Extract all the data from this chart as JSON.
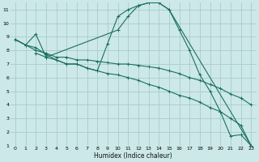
{
  "background_color": "#cce8e8",
  "grid_color": "#aacccc",
  "line_color": "#1a7060",
  "xlabel": "Humidex (Indice chaleur)",
  "xlim": [
    -0.5,
    23.5
  ],
  "ylim": [
    1,
    11.5
  ],
  "xticks": [
    0,
    1,
    2,
    3,
    4,
    5,
    6,
    7,
    8,
    9,
    10,
    11,
    12,
    13,
    14,
    15,
    16,
    17,
    18,
    19,
    20,
    21,
    22,
    23
  ],
  "yticks": [
    1,
    2,
    3,
    4,
    5,
    6,
    7,
    8,
    9,
    10,
    11
  ],
  "curve_main_x": [
    0,
    1,
    2,
    3,
    4,
    5,
    6,
    7,
    8,
    9,
    10,
    11,
    12,
    13,
    14,
    15,
    16,
    17,
    18,
    19,
    20,
    21,
    22,
    23
  ],
  "curve_main_y": [
    8.8,
    8.4,
    8.2,
    7.7,
    7.3,
    7.0,
    7.0,
    6.7,
    6.5,
    8.5,
    10.5,
    11.0,
    11.3,
    11.5,
    11.5,
    11.0,
    9.5,
    8.0,
    6.2,
    5.0,
    3.5,
    1.7,
    1.8,
    1.0
  ],
  "curve_upper_x": [
    0,
    1,
    2,
    3,
    10,
    11,
    12,
    13,
    14,
    15,
    23
  ],
  "curve_upper_y": [
    8.8,
    8.4,
    9.2,
    7.5,
    9.5,
    10.5,
    11.3,
    11.5,
    11.5,
    11.0,
    1.0
  ],
  "curve_mid_x": [
    0,
    1,
    2,
    3,
    4,
    5,
    6,
    7,
    8,
    9,
    10,
    11,
    12,
    13,
    14,
    15,
    16,
    17,
    18,
    19,
    20,
    21,
    22,
    23
  ],
  "curve_mid_y": [
    8.8,
    8.4,
    8.0,
    7.8,
    7.5,
    7.5,
    7.3,
    7.3,
    7.2,
    7.1,
    7.0,
    7.0,
    6.9,
    6.8,
    6.7,
    6.5,
    6.3,
    6.0,
    5.8,
    5.5,
    5.2,
    4.8,
    4.5,
    4.0
  ],
  "curve_low_x": [
    2,
    3,
    4,
    5,
    6,
    7,
    8,
    9,
    10,
    11,
    12,
    13,
    14,
    15,
    16,
    17,
    18,
    19,
    20,
    21,
    22,
    23
  ],
  "curve_low_y": [
    7.8,
    7.5,
    7.3,
    7.0,
    7.0,
    6.7,
    6.5,
    6.3,
    6.2,
    6.0,
    5.8,
    5.5,
    5.3,
    5.0,
    4.7,
    4.5,
    4.2,
    3.8,
    3.5,
    3.0,
    2.5,
    1.0
  ]
}
